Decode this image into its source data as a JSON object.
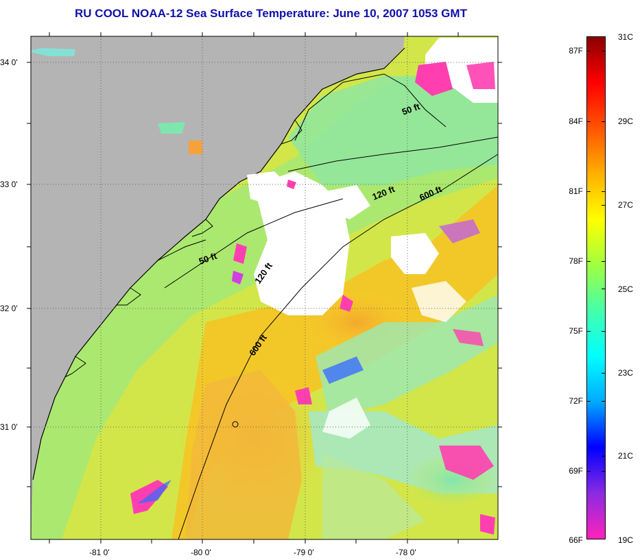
{
  "title": "RU COOL  NOAA-12  Sea Surface Temperature:  June 10, 2007 1053 GMT",
  "map": {
    "lat_labels": [
      "34 0'",
      "33 0'",
      "32 0'",
      "31 0'"
    ],
    "lon_labels": [
      "-81 0'",
      "-80 0'",
      "-79 0'",
      "-78 0'"
    ],
    "contours": [
      "50 ft",
      "120 ft",
      "600 ft",
      "50 ft",
      "120 ft",
      "600 ft"
    ],
    "colors": {
      "land": "#b4b4b4",
      "cloud": "#ffffff",
      "warm": "#f6c21c",
      "mid": "#cfe84a",
      "cool": "#7ee89a"
    }
  },
  "colorbar": {
    "fahrenheit": [
      "87F",
      "84F",
      "81F",
      "78F",
      "75F",
      "72F",
      "69F",
      "66F"
    ],
    "celsius": [
      "31C",
      "29C",
      "27C",
      "25C",
      "23C",
      "21C",
      "19C"
    ],
    "gradient_colors": [
      "#ff22bb",
      "#8a2be2",
      "#0000ff",
      "#00aaff",
      "#00ffff",
      "#44ffaa",
      "#a0ff40",
      "#ffff00",
      "#ffb000",
      "#ff5500",
      "#ff0000",
      "#8b0000"
    ]
  }
}
